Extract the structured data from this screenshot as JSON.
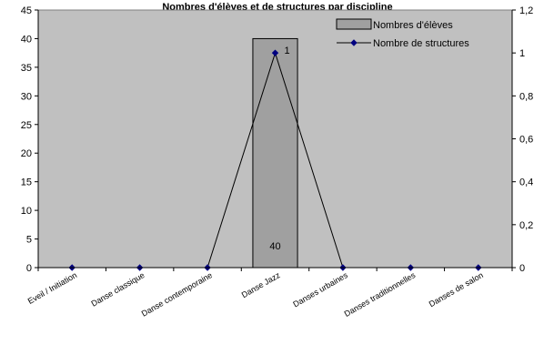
{
  "chart_data": {
    "type": "bar",
    "title": "Nombres d'élèves et de structures par discipline",
    "categories": [
      "Eveil / Initiation",
      "Danse classique",
      "Danse contemporaine",
      "Danse Jazz",
      "Danses urbaines",
      "Danses traditionnelles",
      "Danses de salon"
    ],
    "series": [
      {
        "name": "Nombres d'élèves",
        "type": "bar",
        "axis": "left",
        "values": [
          0,
          0,
          0,
          40,
          0,
          0,
          0
        ],
        "color": "#a0a0a0"
      },
      {
        "name": "Nombre de structures",
        "type": "line",
        "axis": "right",
        "values": [
          0,
          0,
          0,
          1,
          0,
          0,
          0
        ],
        "color": "#000080"
      }
    ],
    "y_left": {
      "min": 0,
      "max": 45,
      "ticks": [
        "0",
        "5",
        "10",
        "15",
        "20",
        "25",
        "30",
        "35",
        "40",
        "45"
      ]
    },
    "y_right": {
      "min": 0,
      "max": 1.2,
      "ticks": [
        "0",
        "0,2",
        "0,4",
        "0,6",
        "0,8",
        "1",
        "1,2"
      ]
    },
    "data_labels": [
      {
        "series": 0,
        "index": 3,
        "text": "40"
      },
      {
        "series": 1,
        "index": 3,
        "text": "1"
      }
    ],
    "plot_background": "#c0c0c0",
    "grid": false,
    "legend_position": "top-right"
  }
}
